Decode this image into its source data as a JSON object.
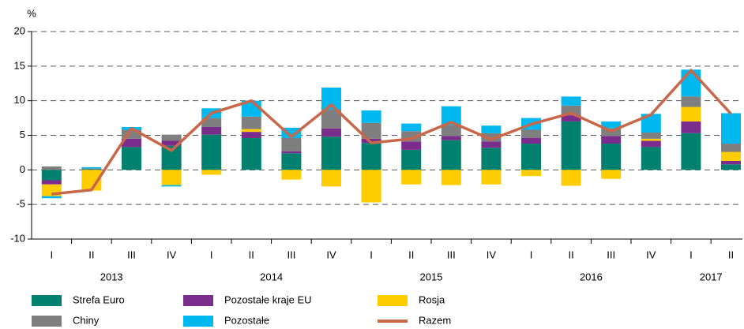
{
  "chart_data": {
    "type": "bar",
    "y_label": "%",
    "categories": [
      "I",
      "II",
      "III",
      "IV",
      "I",
      "II",
      "III",
      "IV",
      "I",
      "II",
      "III",
      "IV",
      "I",
      "II",
      "III",
      "IV",
      "I",
      "II"
    ],
    "years": [
      "2013",
      "2014",
      "2015",
      "2016",
      "2017"
    ],
    "ylim": [
      -10,
      20
    ],
    "yticks": [
      -10,
      -5,
      0,
      5,
      10,
      15,
      20
    ],
    "grid": true,
    "series": [
      {
        "name": "Strefa Euro",
        "type": "bar",
        "color": "#00806f",
        "values": [
          -1.5,
          0.1,
          3.3,
          3.5,
          5.1,
          4.6,
          2.4,
          4.8,
          3.9,
          2.9,
          4.3,
          3.2,
          3.8,
          7.0,
          3.8,
          3.3,
          5.3,
          0.8
        ]
      },
      {
        "name": "Pozostałe kraje EU",
        "type": "bar",
        "color": "#7b2d8e",
        "values": [
          -0.6,
          0,
          1.2,
          0.7,
          1.1,
          0.9,
          0.3,
          1.2,
          0.6,
          1.2,
          0.6,
          0.9,
          0.8,
          0.9,
          1.1,
          0.9,
          1.7,
          0.5
        ]
      },
      {
        "name": "Rosja",
        "type": "bar",
        "color": "#ffcc00",
        "values": [
          -1.7,
          -3.0,
          0,
          -2.2,
          -0.7,
          0.4,
          -1.4,
          -2.4,
          -4.7,
          -2.1,
          -2.2,
          -2.1,
          -0.9,
          -2.3,
          -1.3,
          0.3,
          2.1,
          1.3
        ]
      },
      {
        "name": "Chiny",
        "type": "bar",
        "color": "#7f7f7f",
        "values": [
          0.5,
          0.1,
          1.3,
          0.9,
          1.3,
          1.8,
          1.9,
          2.7,
          2.3,
          1.5,
          1.6,
          1.2,
          1.2,
          1.4,
          1.1,
          0.9,
          1.5,
          1.2
        ]
      },
      {
        "name": "Pozostałe",
        "type": "bar",
        "color": "#00b8f0",
        "values": [
          -0.3,
          0.2,
          0.4,
          -0.2,
          1.4,
          2.3,
          1.5,
          3.2,
          1.8,
          1.1,
          2.7,
          1.1,
          1.7,
          1.3,
          1.0,
          2.7,
          3.9,
          4.4
        ]
      },
      {
        "name": "Razem",
        "type": "line",
        "color": "#c8674a",
        "values": [
          -3.5,
          -2.9,
          6.0,
          2.8,
          8.2,
          10.0,
          4.8,
          9.4,
          3.9,
          4.5,
          6.9,
          4.4,
          6.6,
          8.2,
          5.6,
          8.0,
          14.4,
          8.1
        ]
      }
    ]
  }
}
